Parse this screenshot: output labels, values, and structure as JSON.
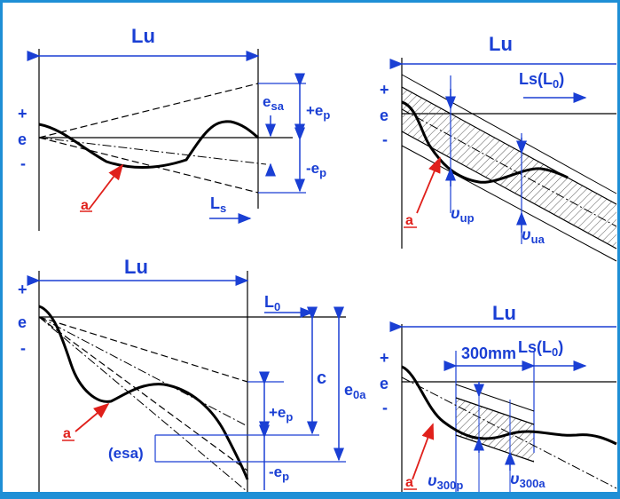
{
  "colors": {
    "frame_border": "#1e8fd6",
    "background": "#ffffff",
    "line": "#000000",
    "dimension": "#1a3fd4",
    "marker": "#e0201b",
    "hatch": "#555555"
  },
  "panel_tl": {
    "lu": "Lu",
    "plus": "+",
    "e": "e",
    "minus": "-",
    "esa_main": "e",
    "esa_sub": "sa",
    "plus_ep_main": "+e",
    "plus_ep_sub": "p",
    "minus_ep_main": "-e",
    "minus_ep_sub": "p",
    "ls_main": "L",
    "ls_sub": "s",
    "a": "a"
  },
  "panel_tr": {
    "lu": "Lu",
    "ls_l0": "Ls(L",
    "ls_l0_sub": "0",
    "ls_l0_close": ")",
    "plus": "+",
    "e": "e",
    "minus": "-",
    "a": "a",
    "vup_main": "υ",
    "vup_sub": "up",
    "vua_main": "υ",
    "vua_sub": "ua"
  },
  "panel_bl": {
    "lu": "Lu",
    "l0_main": "L",
    "l0_sub": "0",
    "plus": "+",
    "e": "e",
    "minus": "-",
    "c": "c",
    "e0a_main": "e",
    "e0a_sub": "0a",
    "plus_ep_main": "+e",
    "plus_ep_sub": "p",
    "esa_label": "(esa)",
    "minus_ep_main": "-e",
    "minus_ep_sub": "p",
    "a": "a"
  },
  "panel_br": {
    "lu": "Lu",
    "ls_l0": "Ls(L",
    "ls_l0_sub": "0",
    "ls_l0_close": ")",
    "mm300": "300mm",
    "plus": "+",
    "e": "e",
    "minus": "-",
    "a": "a",
    "v300p_main": "υ",
    "v300p_sub": "300p",
    "v300a_main": "υ",
    "v300a_sub": "300a"
  }
}
